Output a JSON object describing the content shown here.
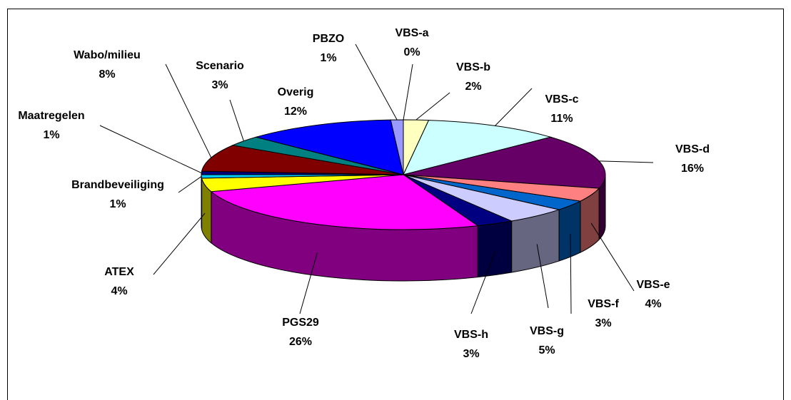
{
  "chart_data": {
    "type": "pie3d",
    "categories": [
      "VBS-a",
      "VBS-b",
      "VBS-c",
      "VBS-d",
      "VBS-e",
      "VBS-f",
      "VBS-g",
      "VBS-h",
      "PGS29",
      "ATEX",
      "Brandbeveiliging",
      "Maatregelen",
      "Wabo/milieu",
      "Scenario",
      "Overig",
      "PBZO"
    ],
    "values": [
      0,
      2,
      11,
      16,
      4,
      3,
      5,
      3,
      26,
      4,
      1,
      1,
      8,
      3,
      12,
      1
    ],
    "value_labels": [
      "0%",
      "2%",
      "11%",
      "16%",
      "4%",
      "3%",
      "5%",
      "3%",
      "26%",
      "4%",
      "1%",
      "1%",
      "8%",
      "3%",
      "12%",
      "1%"
    ],
    "colors": [
      "#993366",
      "#ffffc0",
      "#ccffff",
      "#660066",
      "#ff8080",
      "#0066cc",
      "#ccccff",
      "#000080",
      "#ff00ff",
      "#ffff00",
      "#00ccff",
      "#000080",
      "#800000",
      "#008080",
      "#0000ff",
      "#9999ff"
    ]
  }
}
